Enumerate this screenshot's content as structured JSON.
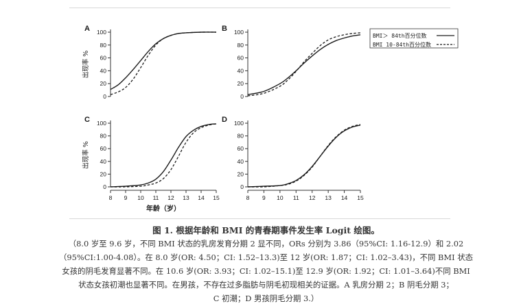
{
  "chart_data": [
    {
      "type": "line",
      "panel_label": "A",
      "ylabel": "出现率 %",
      "xlabel": "",
      "xlim": [
        8,
        15
      ],
      "ylim": [
        0,
        100
      ],
      "yticks": [
        0,
        20,
        40,
        60,
        80,
        100
      ],
      "xticks": [],
      "series": [
        {
          "name": "BMI＞ 84th百分位数",
          "style": "solid",
          "x": [
            8,
            8.5,
            9,
            9.5,
            10,
            10.5,
            11,
            11.5,
            12,
            12.5,
            13,
            14,
            15
          ],
          "y": [
            11,
            18,
            29,
            42,
            56,
            70,
            82,
            90,
            95,
            98,
            99,
            100,
            100
          ]
        },
        {
          "name": "BMI 10-84th百分位数",
          "style": "dashed",
          "x": [
            8,
            8.5,
            9,
            9.5,
            10,
            10.5,
            11,
            11.5,
            12,
            12.5,
            13,
            14,
            15
          ],
          "y": [
            3,
            7,
            14,
            27,
            45,
            64,
            80,
            90,
            95,
            98,
            99,
            100,
            100
          ]
        }
      ]
    },
    {
      "type": "line",
      "panel_label": "B",
      "ylabel": "",
      "xlabel": "",
      "xlim": [
        8,
        15
      ],
      "ylim": [
        0,
        100
      ],
      "yticks": [
        0,
        20,
        40,
        60,
        80,
        100
      ],
      "xticks": [],
      "series": [
        {
          "name": "BMI＞ 84th百分位数",
          "style": "solid",
          "x": [
            8,
            9,
            10,
            10.5,
            11,
            11.5,
            12,
            12.5,
            13,
            13.5,
            14,
            14.5,
            15
          ],
          "y": [
            3,
            8,
            20,
            29,
            40,
            52,
            63,
            73,
            81,
            87,
            91,
            94,
            96
          ]
        },
        {
          "name": "BMI 10-84th百分位数",
          "style": "dashed",
          "x": [
            8,
            9,
            10,
            10.5,
            11,
            11.5,
            12,
            12.5,
            13,
            13.5,
            14,
            14.5,
            15
          ],
          "y": [
            1,
            5,
            16,
            26,
            39,
            54,
            67,
            79,
            88,
            93,
            96,
            98,
            99
          ]
        }
      ]
    },
    {
      "type": "line",
      "panel_label": "C",
      "ylabel": "出现率 %",
      "xlabel": "年龄（岁）",
      "xlim": [
        8,
        15
      ],
      "ylim": [
        0,
        100
      ],
      "yticks": [
        0,
        20,
        40,
        60,
        80,
        100
      ],
      "xticks": [
        8,
        9,
        10,
        11,
        12,
        13,
        14,
        15
      ],
      "series": [
        {
          "name": "BMI＞ 84th百分位数",
          "style": "solid",
          "x": [
            8,
            9,
            10,
            10.5,
            11,
            11.5,
            12,
            12.5,
            13,
            13.5,
            14,
            14.5,
            15
          ],
          "y": [
            0,
            1,
            3,
            6,
            12,
            24,
            42,
            62,
            79,
            89,
            95,
            98,
            99
          ]
        },
        {
          "name": "BMI 10-84th百分位数",
          "style": "dashed",
          "x": [
            8,
            9,
            10,
            10.5,
            11,
            11.5,
            12,
            12.5,
            13,
            13.5,
            14,
            14.5,
            15
          ],
          "y": [
            0,
            0,
            1,
            3,
            6,
            13,
            27,
            48,
            70,
            85,
            93,
            97,
            99
          ]
        }
      ]
    },
    {
      "type": "line",
      "panel_label": "D",
      "ylabel": "",
      "xlabel": "",
      "xlim": [
        8,
        15
      ],
      "ylim": [
        0,
        100
      ],
      "yticks": [
        0,
        20,
        40,
        60,
        80,
        100
      ],
      "xticks": [
        8,
        9,
        10,
        11,
        12,
        13,
        14,
        15
      ],
      "series": [
        {
          "name": "BMI＞ 84th百分位数",
          "style": "solid",
          "x": [
            8,
            9,
            10,
            10.5,
            11,
            11.5,
            12,
            12.5,
            13,
            13.5,
            14,
            14.5,
            15
          ],
          "y": [
            0,
            1,
            2,
            5,
            10,
            19,
            32,
            48,
            64,
            78,
            88,
            94,
            97
          ]
        },
        {
          "name": "BMI 10-84th百分位数",
          "style": "dashed",
          "x": [
            8,
            9,
            10,
            10.5,
            11,
            11.5,
            12,
            12.5,
            13,
            13.5,
            14,
            14.5,
            15
          ],
          "y": [
            0,
            0,
            2,
            4,
            9,
            18,
            31,
            48,
            65,
            79,
            89,
            95,
            98
          ]
        }
      ]
    }
  ],
  "legend": {
    "position": "top-right of panel B",
    "entries": [
      {
        "label": "BMI＞ 84th百分位数",
        "style": "solid"
      },
      {
        "label": "BMI 10-84th百分位数",
        "style": "dashed"
      }
    ]
  },
  "caption": {
    "title": "图 1. 根据年龄和 BMI 的青春期事件发生率 Logit 绘图。",
    "lines": [
      "（8.0 岁至 9.6 岁，不同 BMI 状态的乳房发育分期 2 显不同，ORs 分别为 3.86（95%CI: 1.16-12.9）和 2.02",
      "（95%CI:1.00-4.08）。在 8.0 岁(OR: 4.50；CI: 1.52–13.3)至 12 岁(OR: 1.87；CI: 1.02–3.43)，不同 BMI 状态",
      "女孩的阴毛发育显著不同。在 10.6 岁(OR: 3.93；CI: 1.02–15.1)至 12.9 岁(OR: 1.92；CI: 1.01–3.64)不同 BMI",
      "状态女孩初潮也显著不同。在男孩，不存在过多脂肪与阴毛初现相关的证据。A 乳房分期 2；B  阴毛分期 3；",
      "C  初潮；D  男孩阴毛分期 3.）"
    ]
  },
  "colors": {
    "line": "#1a1a1a",
    "axis": "#333333",
    "rule": "#d8d8d8"
  }
}
